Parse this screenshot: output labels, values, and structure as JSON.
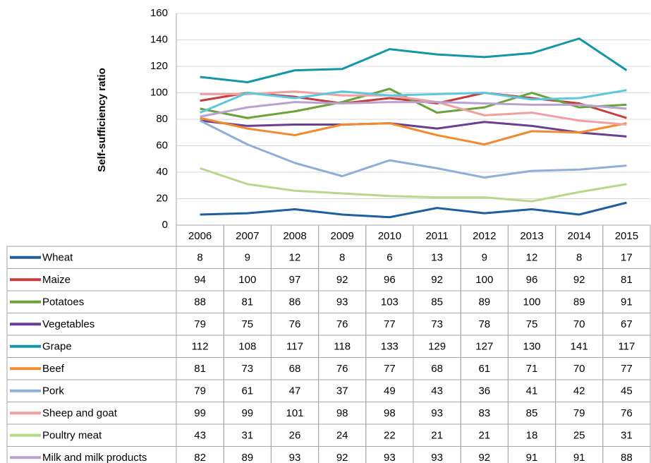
{
  "chart_data": {
    "type": "line",
    "ylabel": "Self-sufficiency ratio",
    "categories": [
      "2006",
      "2007",
      "2008",
      "2009",
      "2010",
      "2011",
      "2012",
      "2013",
      "2014",
      "2015"
    ],
    "ylim": [
      0,
      160
    ],
    "yticks": [
      0,
      20,
      40,
      60,
      80,
      100,
      120,
      140,
      160
    ],
    "grid": true,
    "series": [
      {
        "name": "Wheat",
        "color": "#1f5fa0",
        "values": [
          8,
          9,
          12,
          8,
          6,
          13,
          9,
          12,
          8,
          17
        ]
      },
      {
        "name": "Maize",
        "color": "#c43c3c",
        "values": [
          94,
          100,
          97,
          92,
          96,
          92,
          100,
          96,
          92,
          81
        ]
      },
      {
        "name": "Potatoes",
        "color": "#6aa33a",
        "values": [
          88,
          81,
          86,
          93,
          103,
          85,
          89,
          100,
          89,
          91
        ]
      },
      {
        "name": "Vegetables",
        "color": "#6a3f92",
        "values": [
          79,
          75,
          76,
          76,
          77,
          73,
          78,
          75,
          70,
          67
        ]
      },
      {
        "name": "Grape",
        "color": "#1396a8",
        "values": [
          112,
          108,
          117,
          118,
          133,
          129,
          127,
          130,
          141,
          117
        ]
      },
      {
        "name": "Beef",
        "color": "#f28a2e",
        "values": [
          81,
          73,
          68,
          76,
          77,
          68,
          61,
          71,
          70,
          77
        ]
      },
      {
        "name": "Pork",
        "color": "#8fafd7",
        "values": [
          79,
          61,
          47,
          37,
          49,
          43,
          36,
          41,
          42,
          45
        ]
      },
      {
        "name": "Sheep  and goat",
        "color": "#f0a0a0",
        "values": [
          99,
          99,
          101,
          98,
          98,
          93,
          83,
          85,
          79,
          76
        ]
      },
      {
        "name": "Poultry meat",
        "color": "#b5d88b",
        "values": [
          43,
          31,
          26,
          24,
          22,
          21,
          21,
          18,
          25,
          31
        ]
      },
      {
        "name": "Milk and milk products",
        "color": "#b9a2cf",
        "values": [
          82,
          89,
          93,
          92,
          93,
          93,
          92,
          91,
          91,
          88
        ]
      },
      {
        "color": "#5bc8e0",
        "values": [
          85,
          100,
          96,
          101,
          98,
          99,
          100,
          95,
          96,
          102
        ]
      }
    ]
  }
}
